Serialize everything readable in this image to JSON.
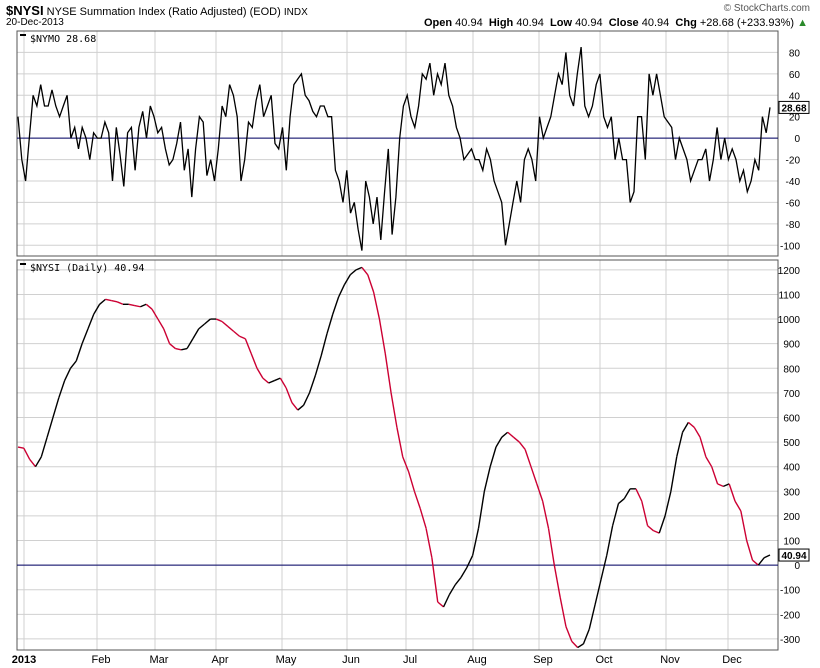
{
  "header": {
    "symbol": "$NYSI",
    "description": "NYSE Summation Index (Ratio Adjusted) (EOD)",
    "exchange": "INDX",
    "date": "20-Dec-2013",
    "open_label": "Open",
    "open": "40.94",
    "high_label": "High",
    "high": "40.94",
    "low_label": "Low",
    "low": "40.94",
    "close_label": "Close",
    "close": "40.94",
    "chg_label": "Chg",
    "chg": "+28.68 (+233.93%)",
    "copyright": "© StockCharts.com"
  },
  "colors": {
    "up": "#000000",
    "down": "#cc0033",
    "zero_line": "#000066",
    "grid": "#d0d0d0"
  },
  "chart_data": [
    {
      "type": "line",
      "legend": "$NYMO  28.68",
      "last_value_label": "28.68",
      "ylim": [
        -110,
        100
      ],
      "yticks": [
        80,
        60,
        40,
        20,
        0,
        -20,
        -40,
        -60,
        -80,
        -100
      ],
      "zero_line": 0,
      "grid": true,
      "series": [
        {
          "values": [
            20,
            -20,
            -40,
            0,
            40,
            30,
            50,
            30,
            30,
            45,
            30,
            20,
            30,
            40,
            0,
            10,
            -10,
            10,
            0,
            -20,
            5,
            0,
            0,
            15,
            5,
            -40,
            10,
            -15,
            -45,
            5,
            10,
            -30,
            10,
            25,
            0,
            30,
            20,
            5,
            10,
            -10,
            -25,
            -20,
            -5,
            15,
            -30,
            -10,
            -55,
            -10,
            20,
            15,
            -35,
            -20,
            -40,
            -10,
            30,
            20,
            50,
            40,
            20,
            -40,
            -20,
            15,
            10,
            35,
            50,
            20,
            30,
            40,
            -5,
            -10,
            10,
            -30,
            20,
            50,
            55,
            60,
            40,
            35,
            25,
            20,
            30,
            30,
            20,
            20,
            -30,
            -40,
            -60,
            -30,
            -70,
            -60,
            -85,
            -105,
            -40,
            -55,
            -80,
            -55,
            -95,
            -50,
            -10,
            -90,
            -55,
            0,
            30,
            40,
            20,
            10,
            30,
            60,
            55,
            70,
            40,
            60,
            50,
            70,
            40,
            30,
            10,
            0,
            -20,
            -15,
            -10,
            -20,
            -20,
            -30,
            -10,
            -20,
            -40,
            -50,
            -60,
            -100,
            -80,
            -60,
            -40,
            -60,
            -20,
            -10,
            -20,
            -40,
            20,
            0,
            10,
            20,
            40,
            60,
            50,
            80,
            40,
            30,
            60,
            85,
            30,
            20,
            30,
            50,
            60,
            20,
            10,
            20,
            -20,
            0,
            -20,
            -20,
            -60,
            -50,
            20,
            20,
            -20,
            60,
            40,
            60,
            40,
            20,
            15,
            10,
            -20,
            0,
            -10,
            -20,
            -40,
            -30,
            -20,
            -20,
            -10,
            -40,
            -20,
            10,
            -20,
            0,
            -20,
            -10,
            -20,
            -40,
            -30,
            -50,
            -40,
            -20,
            -30,
            20,
            5,
            28.68
          ]
        }
      ]
    },
    {
      "type": "line",
      "legend": "$NYSI (Daily)  40.94",
      "last_value_label": "40.94",
      "ylim": [
        -345,
        1240
      ],
      "yticks": [
        1200,
        1100,
        1000,
        900,
        800,
        700,
        600,
        500,
        400,
        300,
        200,
        100,
        0,
        -100,
        -200,
        -300
      ],
      "zero_line": 0,
      "grid": true,
      "x_tick_labels": [
        "2013",
        "Feb",
        "Mar",
        "Apr",
        "May",
        "Jun",
        "Jul",
        "Aug",
        "Sep",
        "Oct",
        "Nov",
        "Dec"
      ],
      "series": [
        {
          "values": [
            480,
            475,
            430,
            400,
            440,
            520,
            600,
            680,
            750,
            800,
            830,
            900,
            960,
            1020,
            1060,
            1080,
            1075,
            1070,
            1060,
            1060,
            1055,
            1050,
            1060,
            1040,
            1000,
            960,
            900,
            880,
            875,
            880,
            920,
            960,
            980,
            1000,
            1000,
            990,
            970,
            950,
            930,
            920,
            860,
            800,
            760,
            740,
            750,
            760,
            720,
            660,
            630,
            650,
            700,
            770,
            850,
            940,
            1020,
            1090,
            1140,
            1180,
            1200,
            1210,
            1180,
            1110,
            1000,
            860,
            700,
            560,
            440,
            380,
            300,
            230,
            150,
            30,
            -150,
            -170,
            -120,
            -80,
            -50,
            -10,
            40,
            150,
            300,
            400,
            480,
            520,
            540,
            520,
            500,
            470,
            400,
            330,
            260,
            150,
            0,
            -130,
            -250,
            -310,
            -335,
            -320,
            -260,
            -160,
            -60,
            40,
            160,
            250,
            270,
            310,
            310,
            260,
            160,
            140,
            130,
            200,
            300,
            440,
            540,
            580,
            560,
            520,
            440,
            400,
            330,
            320,
            330,
            260,
            220,
            100,
            20,
            0,
            30,
            40.94
          ]
        }
      ]
    }
  ]
}
